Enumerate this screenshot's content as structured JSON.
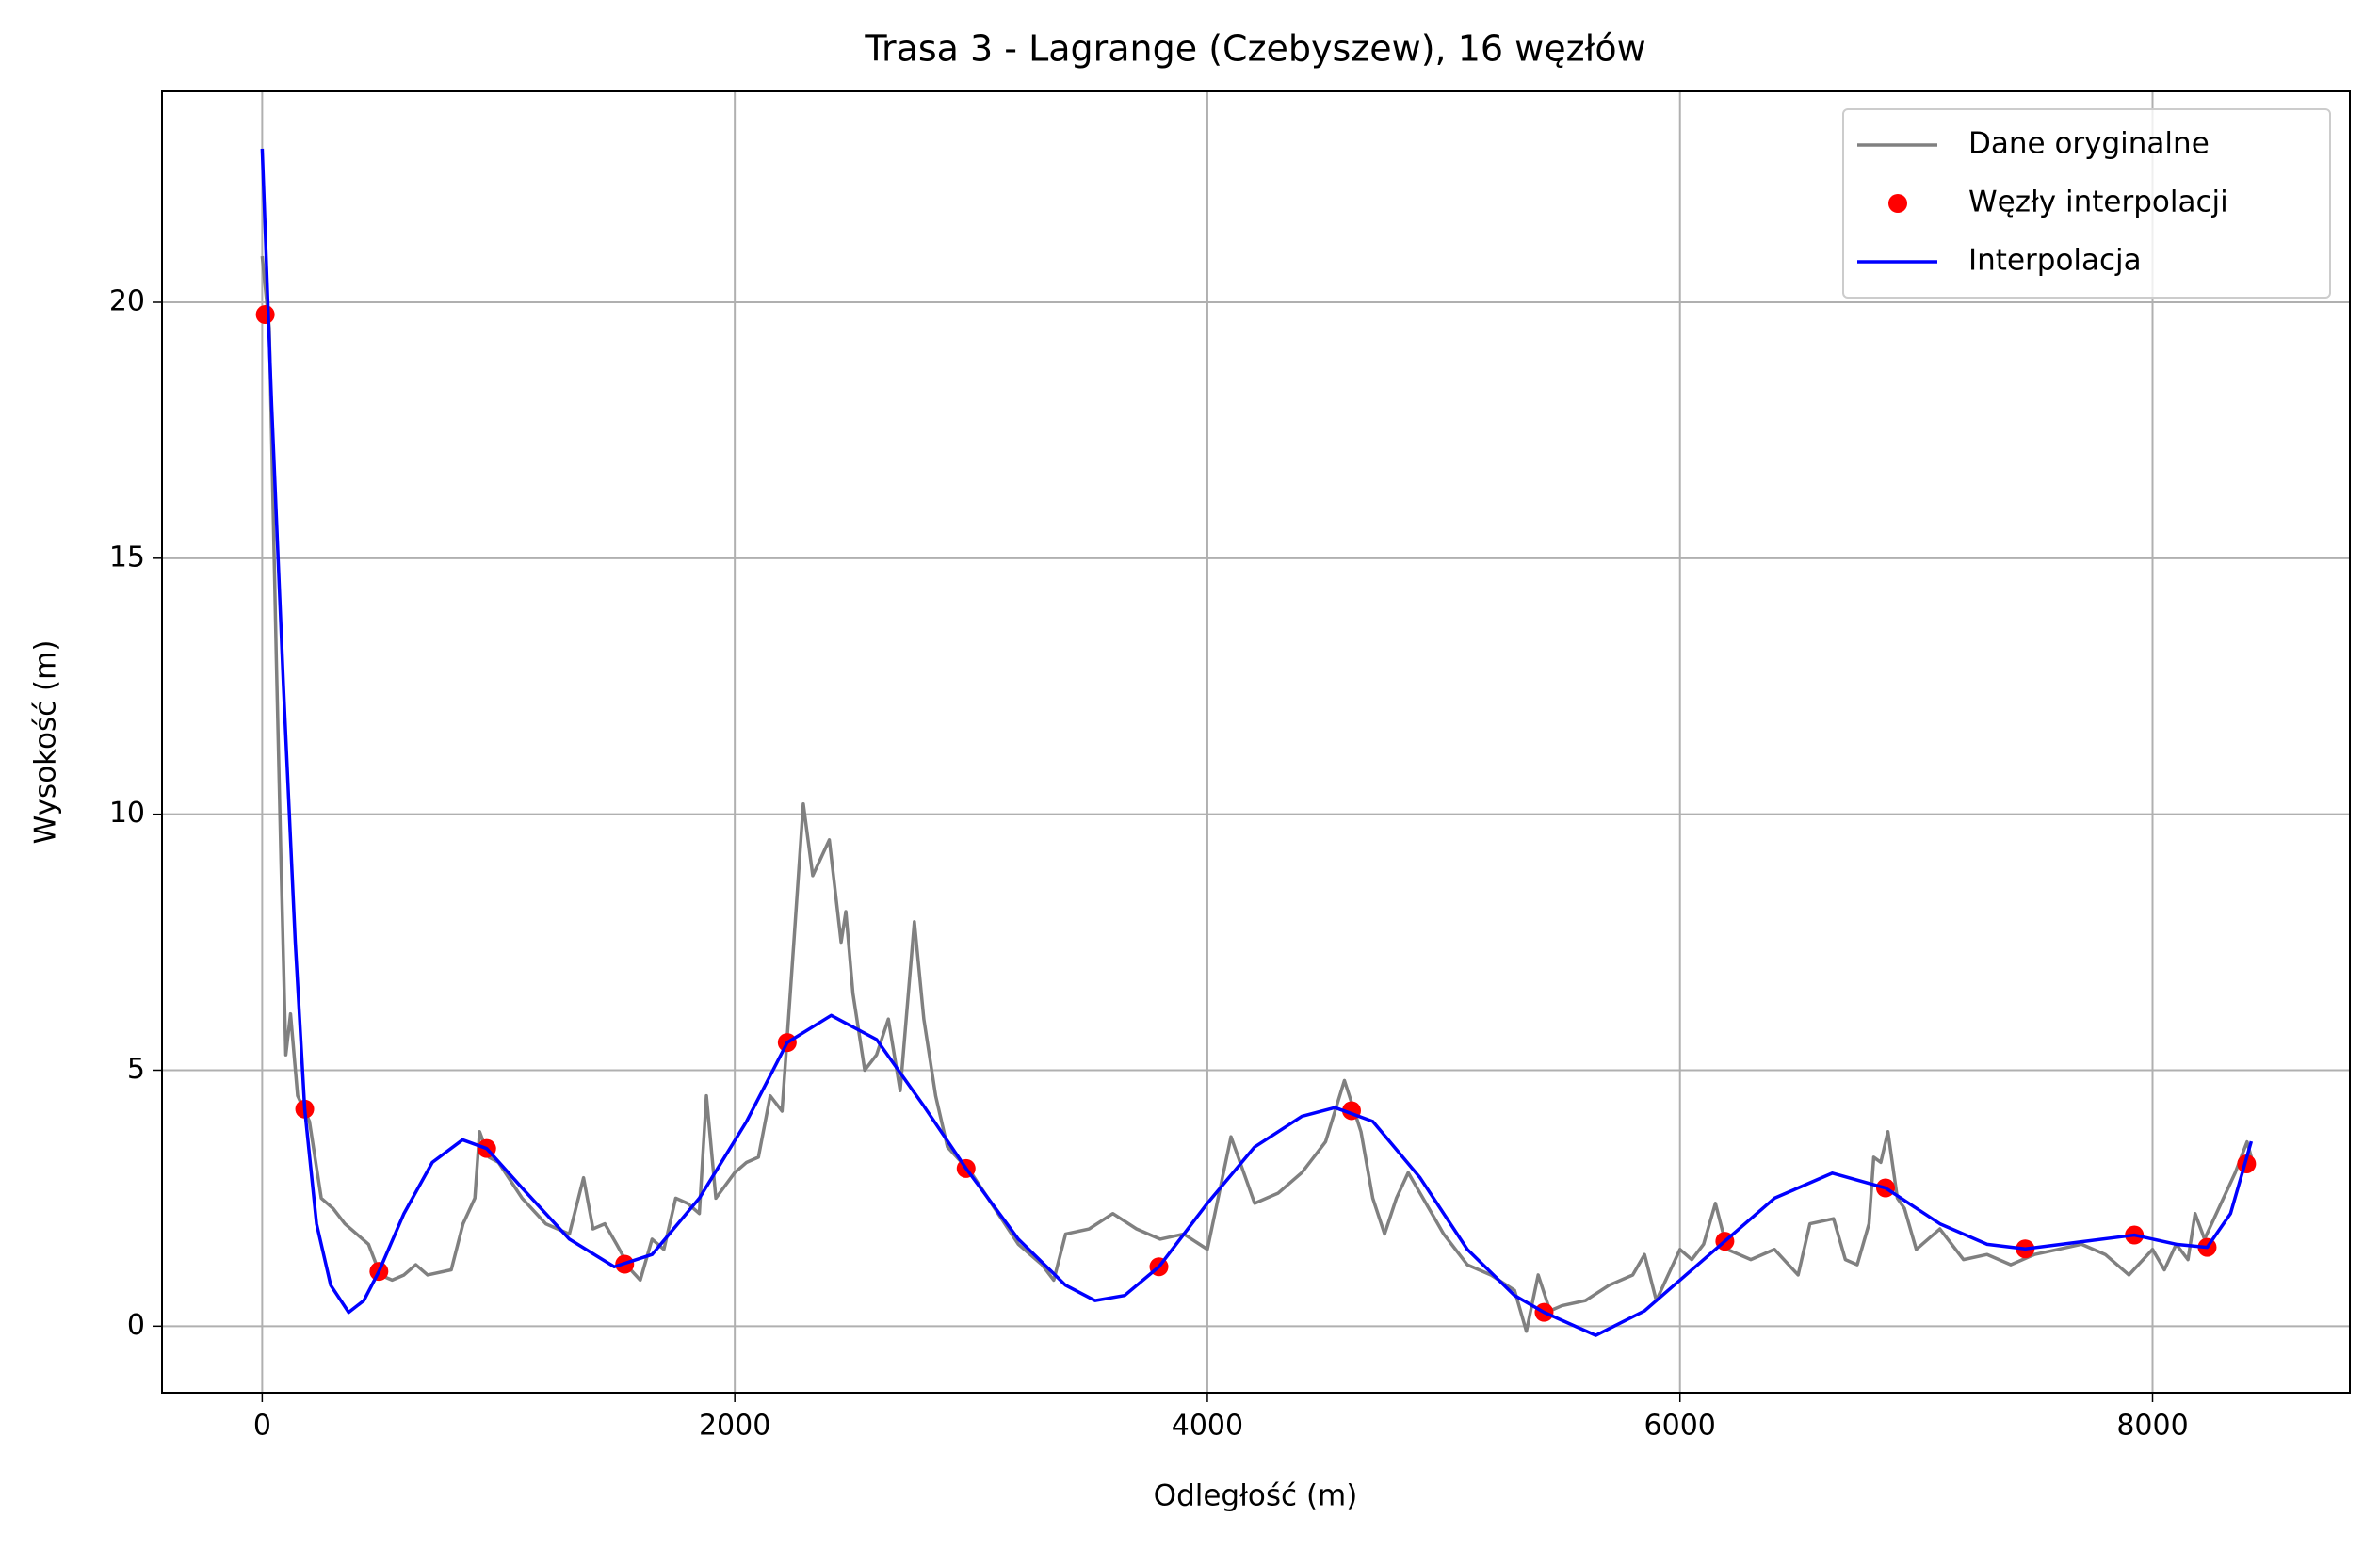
{
  "chart_data": {
    "type": "line",
    "title": "Trasa 3 - Lagrange (Czebyszew), 16 węzłów",
    "xlabel": "Odległość (m)",
    "ylabel": "Wysokość (m)",
    "xlim": [
      -424,
      8835
    ],
    "ylim": [
      -1.3,
      24.12
    ],
    "xticks": [
      0,
      2000,
      4000,
      6000,
      8000
    ],
    "yticks": [
      0,
      5,
      10,
      15,
      20
    ],
    "grid": true,
    "legend": "upper right",
    "series": [
      {
        "name": "Dane oryginalne",
        "color": "#808080",
        "style": "line",
        "x": [
          0,
          30,
          60,
          80,
          100,
          120,
          150,
          200,
          250,
          300,
          350,
          400,
          450,
          500,
          550,
          600,
          650,
          700,
          800,
          850,
          900,
          920,
          960,
          1000,
          1100,
          1200,
          1300,
          1360,
          1400,
          1450,
          1500,
          1560,
          1600,
          1650,
          1700,
          1750,
          1800,
          1850,
          1880,
          1920,
          2000,
          2050,
          2100,
          2150,
          2200,
          2250,
          2290,
          2330,
          2400,
          2450,
          2470,
          2500,
          2550,
          2600,
          2650,
          2700,
          2760,
          2800,
          2850,
          2900,
          3000,
          3100,
          3200,
          3300,
          3350,
          3400,
          3500,
          3600,
          3700,
          3800,
          3900,
          4000,
          4050,
          4100,
          4200,
          4300,
          4400,
          4500,
          4580,
          4650,
          4700,
          4750,
          4800,
          4850,
          4900,
          5000,
          5100,
          5200,
          5300,
          5350,
          5400,
          5450,
          5500,
          5600,
          5700,
          5800,
          5850,
          5900,
          6000,
          6050,
          6100,
          6150,
          6200,
          6300,
          6400,
          6500,
          6550,
          6650,
          6700,
          6750,
          6800,
          6820,
          6850,
          6880,
          6920,
          6950,
          7000,
          7100,
          7200,
          7300,
          7400,
          7500,
          7600,
          7700,
          7800,
          7900,
          8000,
          8050,
          8100,
          8150,
          8180,
          8220,
          8300,
          8350,
          8400,
          8418
        ],
        "values": [
          20.9,
          19.5,
          13,
          9,
          5.3,
          6.1,
          4.5,
          4.0,
          2.5,
          2.3,
          2.0,
          1.8,
          1.6,
          1.0,
          0.9,
          1.0,
          1.2,
          1.0,
          1.1,
          2.0,
          2.5,
          3.8,
          3.3,
          3.2,
          2.5,
          2.0,
          1.8,
          2.9,
          1.9,
          2.0,
          1.6,
          1.1,
          0.9,
          1.7,
          1.5,
          2.5,
          2.4,
          2.2,
          4.5,
          2.5,
          3.0,
          3.2,
          3.3,
          4.5,
          4.2,
          7.5,
          10.2,
          8.8,
          9.5,
          7.5,
          8.1,
          6.5,
          5.0,
          5.3,
          6.0,
          4.6,
          7.9,
          6.0,
          4.5,
          3.5,
          3.0,
          2.3,
          1.6,
          1.2,
          0.9,
          1.8,
          1.9,
          2.2,
          1.9,
          1.7,
          1.8,
          1.5,
          2.6,
          3.7,
          2.4,
          2.6,
          3.0,
          3.6,
          4.8,
          3.8,
          2.5,
          1.8,
          2.5,
          3.0,
          2.6,
          1.8,
          1.2,
          1.0,
          0.7,
          -0.1,
          1.0,
          0.3,
          0.4,
          0.5,
          0.8,
          1.0,
          1.4,
          0.5,
          1.5,
          1.3,
          1.6,
          2.4,
          1.5,
          1.3,
          1.5,
          1.0,
          2.0,
          2.1,
          1.3,
          1.2,
          2.0,
          3.3,
          3.2,
          3.8,
          2.5,
          2.3,
          1.5,
          1.9,
          1.3,
          1.4,
          1.2,
          1.4,
          1.5,
          1.6,
          1.4,
          1.0,
          1.5,
          1.1,
          1.6,
          1.3,
          2.2,
          1.7,
          2.5,
          3.0,
          3.6,
          3.3
        ]
      },
      {
        "name": "Węzły interpolacji",
        "color": "#ff0000",
        "style": "markers",
        "x": [
          13,
          180,
          494,
          950,
          1534,
          2222,
          2979,
          3795,
          4610,
          5425,
          6190,
          6870,
          7461,
          7923,
          8231,
          8398
        ],
        "values": [
          19.76,
          4.24,
          1.07,
          3.47,
          1.21,
          5.54,
          3.08,
          1.16,
          4.21,
          0.27,
          1.66,
          2.7,
          1.51,
          1.78,
          1.54,
          3.17
        ]
      },
      {
        "name": "Interpolacja",
        "color": "#0000ff",
        "style": "line",
        "x": [
          0,
          40,
          90,
          140,
          180,
          230,
          290,
          366,
          430,
          494,
          600,
          720,
          848,
          950,
          1100,
          1300,
          1490,
          1650,
          1850,
          2050,
          2222,
          2408,
          2600,
          2800,
          2979,
          3200,
          3400,
          3525,
          3650,
          3795,
          4000,
          4200,
          4400,
          4540,
          4700,
          4900,
          5100,
          5300,
          5425,
          5644,
          5850,
          6000,
          6190,
          6400,
          6645,
          6870,
          7100,
          7300,
          7461,
          7700,
          7923,
          8100,
          8231,
          8330,
          8418
        ],
        "values": [
          23.0,
          18.0,
          12.5,
          7.5,
          4.24,
          2.0,
          0.8,
          0.27,
          0.5,
          1.07,
          2.2,
          3.2,
          3.64,
          3.47,
          2.7,
          1.7,
          1.16,
          1.4,
          2.5,
          4.0,
          5.54,
          6.07,
          5.6,
          4.3,
          3.08,
          1.7,
          0.8,
          0.5,
          0.6,
          1.16,
          2.4,
          3.5,
          4.1,
          4.27,
          4.0,
          2.9,
          1.5,
          0.6,
          0.27,
          -0.18,
          0.3,
          0.9,
          1.66,
          2.5,
          2.99,
          2.7,
          2.0,
          1.6,
          1.51,
          1.65,
          1.78,
          1.6,
          1.54,
          2.2,
          3.61
        ]
      }
    ]
  }
}
